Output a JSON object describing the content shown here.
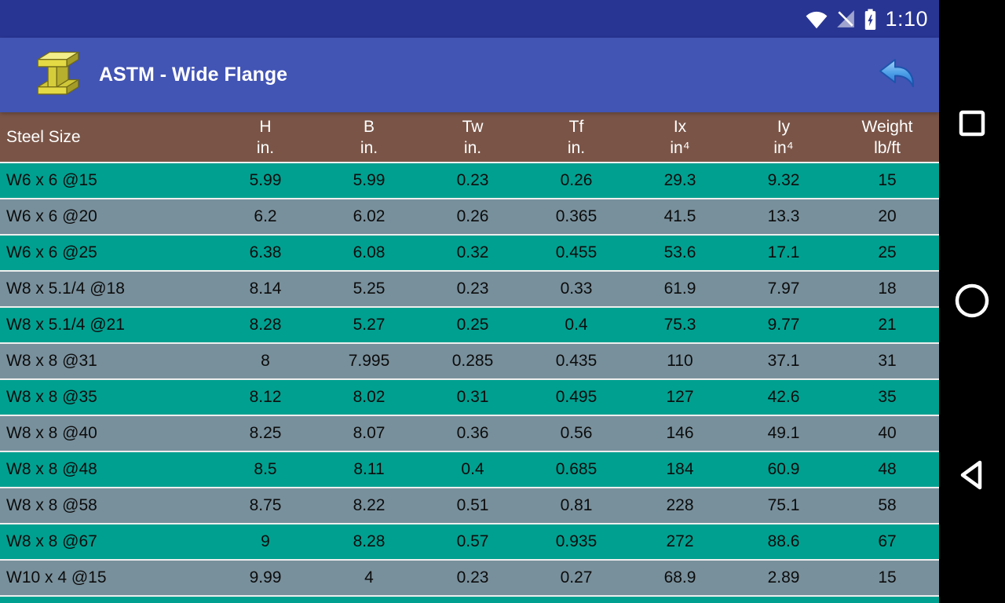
{
  "status_bar": {
    "time": "1:10",
    "icons": [
      "wifi",
      "cellular-no-signal",
      "battery-charging"
    ]
  },
  "app_bar": {
    "title": "ASTM - Wide Flange",
    "icon": "i-beam-icon",
    "back_icon": "undo-arrow-icon"
  },
  "table": {
    "columns": [
      {
        "key": "steel_size",
        "label": "Steel Size",
        "unit": ""
      },
      {
        "key": "h",
        "label": "H",
        "unit": "in."
      },
      {
        "key": "b",
        "label": "B",
        "unit": "in."
      },
      {
        "key": "tw",
        "label": "Tw",
        "unit": "in."
      },
      {
        "key": "tf",
        "label": "Tf",
        "unit": "in."
      },
      {
        "key": "ix",
        "label": "Ix",
        "unit": "in⁴"
      },
      {
        "key": "iy",
        "label": "Iy",
        "unit": "in⁴"
      },
      {
        "key": "weight",
        "label": "Weight",
        "unit": "lb/ft"
      }
    ],
    "rows": [
      [
        "W6 x 6 @15",
        "5.99",
        "5.99",
        "0.23",
        "0.26",
        "29.3",
        "9.32",
        "15"
      ],
      [
        "W6 x 6 @20",
        "6.2",
        "6.02",
        "0.26",
        "0.365",
        "41.5",
        "13.3",
        "20"
      ],
      [
        "W6 x 6 @25",
        "6.38",
        "6.08",
        "0.32",
        "0.455",
        "53.6",
        "17.1",
        "25"
      ],
      [
        "W8 x 5.1/4 @18",
        "8.14",
        "5.25",
        "0.23",
        "0.33",
        "61.9",
        "7.97",
        "18"
      ],
      [
        "W8 x 5.1/4 @21",
        "8.28",
        "5.27",
        "0.25",
        "0.4",
        "75.3",
        "9.77",
        "21"
      ],
      [
        "W8 x 8 @31",
        "8",
        "7.995",
        "0.285",
        "0.435",
        "110",
        "37.1",
        "31"
      ],
      [
        "W8 x 8 @35",
        "8.12",
        "8.02",
        "0.31",
        "0.495",
        "127",
        "42.6",
        "35"
      ],
      [
        "W8 x 8 @40",
        "8.25",
        "8.07",
        "0.36",
        "0.56",
        "146",
        "49.1",
        "40"
      ],
      [
        "W8 x 8 @48",
        "8.5",
        "8.11",
        "0.4",
        "0.685",
        "184",
        "60.9",
        "48"
      ],
      [
        "W8 x 8 @58",
        "8.75",
        "8.22",
        "0.51",
        "0.81",
        "228",
        "75.1",
        "58"
      ],
      [
        "W8 x 8 @67",
        "9",
        "8.28",
        "0.57",
        "0.935",
        "272",
        "88.6",
        "67"
      ],
      [
        "W10 x 4 @15",
        "9.99",
        "4",
        "0.23",
        "0.27",
        "68.9",
        "2.89",
        "15"
      ]
    ]
  },
  "nav_bar": {
    "buttons": [
      "recents",
      "home",
      "back"
    ]
  },
  "colors": {
    "status_bar": "#283593",
    "app_bar": "#4254b4",
    "header_row": "#7a5547",
    "row_teal": "#00a090",
    "row_gray": "#78909c",
    "nav_bar": "#000000",
    "header_text": "#ffffff",
    "row_text": "#0c0c0c"
  }
}
